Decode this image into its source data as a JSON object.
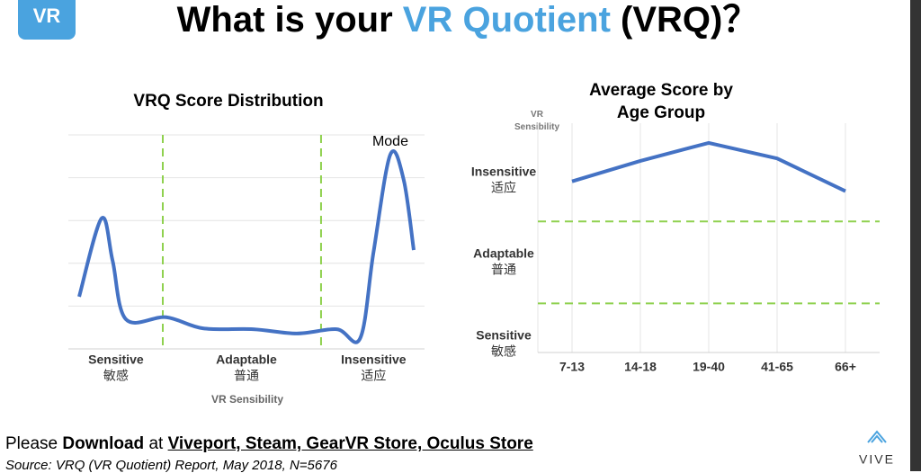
{
  "header": {
    "logo_text": "VR",
    "title_start": "What is your",
    "title_highlight": "VR Quotient",
    "title_end": "(VRQ)？"
  },
  "chart_data": [
    {
      "type": "line",
      "title": "VRQ Score Distribution",
      "x_label": "VR Sensibility",
      "annotation": "Mode",
      "x": [
        0,
        6.7,
        10,
        14,
        26,
        37,
        52,
        65,
        77,
        84,
        88,
        93,
        97,
        100
      ],
      "values": [
        1.22,
        3.05,
        2.06,
        0.69,
        0.74,
        0.48,
        0.46,
        0.36,
        0.46,
        0.25,
        2.27,
        4.54,
        3.95,
        2.31
      ],
      "color": "#4472c4",
      "xlim": [
        0,
        100
      ],
      "ylim": [
        0,
        5
      ],
      "yticks": [
        1,
        2,
        3,
        4,
        5
      ],
      "thresholds": [
        25,
        72.3
      ],
      "threshold_color": "#8fd14f",
      "categories": [
        "Sensitive",
        "Adaptable",
        "Insensitive"
      ],
      "categories_zh": [
        "敏感",
        "普通",
        "适应"
      ],
      "category_x": [
        11,
        50,
        88
      ]
    },
    {
      "type": "line",
      "title": "Average Score by Age Group",
      "y_label": "VR Sensibility",
      "categories": [
        "7-13",
        "14-18",
        "19-40",
        "41-65",
        "66+"
      ],
      "values": [
        2.49,
        2.74,
        2.96,
        2.77,
        2.37
      ],
      "color": "#4472c4",
      "ylim": [
        0.4,
        3.2
      ],
      "yticks": [
        {
          "value": 0.5,
          "label": "Sensitive",
          "label_zh": "敏感"
        },
        {
          "value": 1.5,
          "label": "Adaptable",
          "label_zh": "普通"
        },
        {
          "value": 2.5,
          "label": "Insensitive",
          "label_zh": "适应"
        }
      ],
      "thresholds": [
        1,
        2
      ],
      "threshold_color": "#8fd14f"
    }
  ],
  "footer": {
    "prefix": "Please",
    "bold": "Download",
    "at": "at",
    "stores": "Viveport, Steam, GearVR Store, Oculus Store",
    "source": "Source: VRQ (VR Quotient) Report, May 2018, N=5676",
    "brand": "VIVE"
  }
}
